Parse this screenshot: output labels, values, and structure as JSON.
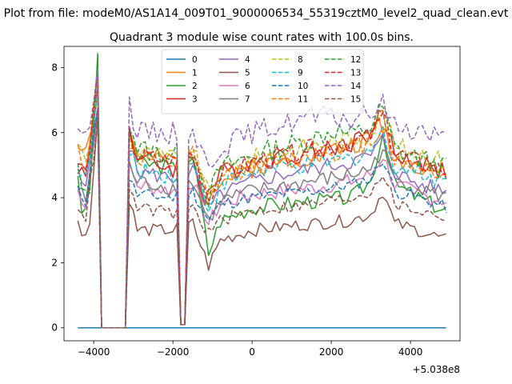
{
  "chart_data": {
    "type": "line",
    "suptitle": "Plot from file: modeM0/AS1A14_009T01_9000006534_55319cztM0_level2_quad_clean.evt",
    "title": "Quadrant 3 module wise count rates with 100.0s bins.",
    "xlabel": "",
    "ylabel": "",
    "offset_text": "+5.038e8",
    "xlim": [
      -4750,
      5250
    ],
    "ylim": [
      -0.4,
      8.65
    ],
    "x_ticks": [
      -4000,
      -2000,
      0,
      2000,
      4000
    ],
    "x_tick_labels": [
      "−4000",
      "−2000",
      "0",
      "2000",
      "4000"
    ],
    "y_ticks": [
      0,
      2,
      4,
      6,
      8
    ],
    "y_tick_labels": [
      "0",
      "2",
      "4",
      "6",
      "8"
    ],
    "legend_position": "upper center",
    "legend_columns": 4,
    "x": {
      "start": -4400,
      "end": 4900,
      "step": 100
    },
    "gaps": [
      {
        "from": -3800,
        "to": -3200,
        "value": 0
      },
      {
        "from": -1800,
        "to": -1700,
        "value": 0.1
      }
    ],
    "series": [
      {
        "name": "0",
        "color": "#1f77b4",
        "dash": "solid",
        "anchors": [
          [
            -4400,
            0
          ],
          [
            4900,
            0
          ]
        ],
        "noise": 0
      },
      {
        "name": "1",
        "color": "#ff7f0e",
        "dash": "solid",
        "anchors": [
          [
            -4400,
            5.6
          ],
          [
            -4100,
            5.8
          ],
          [
            -3900,
            7.2
          ],
          [
            -3100,
            6.0
          ],
          [
            -2900,
            5.3
          ],
          [
            -2000,
            5.1
          ],
          [
            -1500,
            5.4
          ],
          [
            -1200,
            3.8
          ],
          [
            -1000,
            4.4
          ],
          [
            0,
            4.9
          ],
          [
            1500,
            5.3
          ],
          [
            2500,
            5.6
          ],
          [
            3000,
            5.8
          ],
          [
            3200,
            6.5
          ],
          [
            3600,
            5.2
          ],
          [
            4200,
            5.0
          ],
          [
            4900,
            4.7
          ]
        ],
        "noise": 0.3
      },
      {
        "name": "2",
        "color": "#2ca02c",
        "dash": "solid",
        "anchors": [
          [
            -4400,
            4.8
          ],
          [
            -4300,
            3.3
          ],
          [
            -4100,
            4.2
          ],
          [
            -3900,
            8.2
          ],
          [
            -3100,
            6.1
          ],
          [
            -2900,
            5.1
          ],
          [
            -2000,
            4.9
          ],
          [
            -1500,
            5.3
          ],
          [
            -1100,
            2.3
          ],
          [
            -800,
            3.3
          ],
          [
            0,
            3.7
          ],
          [
            1500,
            3.9
          ],
          [
            2500,
            4.0
          ],
          [
            3000,
            4.5
          ],
          [
            3300,
            6.0
          ],
          [
            3600,
            4.4
          ],
          [
            4200,
            4.0
          ],
          [
            4900,
            3.6
          ]
        ],
        "noise": 0.25
      },
      {
        "name": "3",
        "color": "#d62728",
        "dash": "solid",
        "anchors": [
          [
            -4400,
            5.0
          ],
          [
            -4200,
            4.6
          ],
          [
            -3900,
            7.4
          ],
          [
            -3100,
            6.3
          ],
          [
            -2900,
            5.2
          ],
          [
            -2000,
            4.9
          ],
          [
            -1500,
            5.2
          ],
          [
            -1200,
            4.0
          ],
          [
            -800,
            4.7
          ],
          [
            0,
            5.1
          ],
          [
            1500,
            5.4
          ],
          [
            2500,
            5.7
          ],
          [
            3000,
            6.0
          ],
          [
            3300,
            6.6
          ],
          [
            3600,
            5.3
          ],
          [
            4200,
            5.1
          ],
          [
            4900,
            4.8
          ]
        ],
        "noise": 0.3
      },
      {
        "name": "4",
        "color": "#9467bd",
        "dash": "solid",
        "anchors": [
          [
            -4400,
            4.7
          ],
          [
            -4200,
            4.2
          ],
          [
            -3900,
            7.0
          ],
          [
            -3100,
            5.6
          ],
          [
            -2900,
            4.8
          ],
          [
            -2000,
            4.6
          ],
          [
            -1500,
            4.9
          ],
          [
            -1100,
            3.6
          ],
          [
            -800,
            4.1
          ],
          [
            0,
            4.5
          ],
          [
            1500,
            4.9
          ],
          [
            2500,
            5.1
          ],
          [
            3000,
            5.3
          ],
          [
            3300,
            5.8
          ],
          [
            3600,
            4.8
          ],
          [
            4200,
            4.4
          ],
          [
            4900,
            4.2
          ]
        ],
        "noise": 0.25
      },
      {
        "name": "5",
        "color": "#8c564b",
        "dash": "solid",
        "anchors": [
          [
            -4400,
            3.2
          ],
          [
            -4300,
            2.9
          ],
          [
            -4100,
            3.2
          ],
          [
            -3900,
            6.5
          ],
          [
            -3100,
            4.0
          ],
          [
            -2900,
            3.0
          ],
          [
            -2000,
            3.0
          ],
          [
            -1500,
            3.2
          ],
          [
            -1100,
            1.9
          ],
          [
            -800,
            2.7
          ],
          [
            0,
            3.0
          ],
          [
            1500,
            3.2
          ],
          [
            2500,
            3.3
          ],
          [
            3000,
            3.5
          ],
          [
            3300,
            4.2
          ],
          [
            3600,
            3.2
          ],
          [
            4200,
            3.0
          ],
          [
            4900,
            2.7
          ]
        ],
        "noise": 0.2
      },
      {
        "name": "6",
        "color": "#e377c2",
        "dash": "solid",
        "anchors": [
          [
            -4400,
            4.2
          ],
          [
            -4200,
            3.8
          ],
          [
            -3900,
            6.5
          ],
          [
            -3100,
            4.9
          ],
          [
            -2900,
            4.4
          ],
          [
            -2000,
            4.2
          ],
          [
            -1500,
            4.5
          ],
          [
            -1100,
            3.2
          ],
          [
            -800,
            3.8
          ],
          [
            0,
            4.1
          ],
          [
            1500,
            4.3
          ],
          [
            2500,
            4.5
          ],
          [
            3000,
            4.7
          ],
          [
            3300,
            5.3
          ],
          [
            3600,
            4.4
          ],
          [
            4200,
            4.1
          ],
          [
            4900,
            3.9
          ]
        ],
        "noise": 0.25
      },
      {
        "name": "7",
        "color": "#7f7f7f",
        "dash": "solid",
        "anchors": [
          [
            -4400,
            4.3
          ],
          [
            -4200,
            3.9
          ],
          [
            -3900,
            6.6
          ],
          [
            -3100,
            5.0
          ],
          [
            -2900,
            4.5
          ],
          [
            -2000,
            4.3
          ],
          [
            -1500,
            4.5
          ],
          [
            -1100,
            3.3
          ],
          [
            -800,
            3.9
          ],
          [
            0,
            4.2
          ],
          [
            1500,
            4.5
          ],
          [
            2500,
            4.7
          ],
          [
            3000,
            4.9
          ],
          [
            3300,
            5.5
          ],
          [
            3600,
            4.6
          ],
          [
            4200,
            4.3
          ],
          [
            4900,
            4.0
          ]
        ],
        "noise": 0.25
      },
      {
        "name": "8",
        "color": "#bcbd22",
        "dash": "dashed",
        "anchors": [
          [
            -4400,
            5.8
          ],
          [
            -4200,
            5.0
          ],
          [
            -3900,
            7.4
          ],
          [
            -3100,
            5.8
          ],
          [
            -2900,
            5.4
          ],
          [
            -2000,
            5.2
          ],
          [
            -1500,
            5.5
          ],
          [
            -1100,
            4.1
          ],
          [
            -800,
            4.8
          ],
          [
            0,
            5.2
          ],
          [
            1500,
            5.6
          ],
          [
            2500,
            5.8
          ],
          [
            3000,
            6.0
          ],
          [
            3300,
            6.6
          ],
          [
            3600,
            5.6
          ],
          [
            4200,
            5.4
          ],
          [
            4900,
            5.1
          ]
        ],
        "noise": 0.3
      },
      {
        "name": "9",
        "color": "#17becf",
        "dash": "dashed",
        "anchors": [
          [
            -4400,
            4.9
          ],
          [
            -4200,
            4.5
          ],
          [
            -3900,
            7.1
          ],
          [
            -3100,
            5.3
          ],
          [
            -2900,
            4.9
          ],
          [
            -2000,
            4.7
          ],
          [
            -1500,
            5.0
          ],
          [
            -1100,
            3.7
          ],
          [
            -800,
            4.4
          ],
          [
            0,
            4.8
          ],
          [
            1500,
            5.0
          ],
          [
            2500,
            5.2
          ],
          [
            3000,
            5.5
          ],
          [
            3300,
            6.0
          ],
          [
            3600,
            5.0
          ],
          [
            4200,
            4.8
          ],
          [
            4900,
            4.5
          ]
        ],
        "noise": 0.3
      },
      {
        "name": "10",
        "color": "#1f77b4",
        "dash": "dashed",
        "anchors": [
          [
            -4400,
            4.2
          ],
          [
            -4200,
            3.9
          ],
          [
            -3900,
            6.8
          ],
          [
            -3100,
            4.6
          ],
          [
            -2900,
            4.1
          ],
          [
            -2000,
            4.0
          ],
          [
            -1500,
            4.2
          ],
          [
            -1100,
            3.3
          ],
          [
            -800,
            3.8
          ],
          [
            0,
            4.0
          ],
          [
            1500,
            4.2
          ],
          [
            2500,
            4.4
          ],
          [
            3000,
            4.6
          ],
          [
            3300,
            5.2
          ],
          [
            3600,
            4.2
          ],
          [
            4200,
            4.0
          ],
          [
            4900,
            3.7
          ]
        ],
        "noise": 0.2
      },
      {
        "name": "11",
        "color": "#ff7f0e",
        "dash": "dashed",
        "anchors": [
          [
            -4400,
            5.5
          ],
          [
            -4200,
            5.0
          ],
          [
            -3900,
            7.5
          ],
          [
            -3100,
            5.7
          ],
          [
            -2900,
            5.2
          ],
          [
            -2000,
            5.0
          ],
          [
            -1500,
            5.3
          ],
          [
            -1100,
            3.9
          ],
          [
            -800,
            4.6
          ],
          [
            0,
            5.0
          ],
          [
            1500,
            5.3
          ],
          [
            2500,
            5.5
          ],
          [
            3000,
            5.7
          ],
          [
            3300,
            6.3
          ],
          [
            3600,
            5.2
          ],
          [
            4200,
            5.0
          ],
          [
            4900,
            4.7
          ]
        ],
        "noise": 0.3
      },
      {
        "name": "12",
        "color": "#2ca02c",
        "dash": "dashed",
        "anchors": [
          [
            -4400,
            5.0
          ],
          [
            -4300,
            4.0
          ],
          [
            -4100,
            4.4
          ],
          [
            -3900,
            8.2
          ],
          [
            -3100,
            6.4
          ],
          [
            -2900,
            5.5
          ],
          [
            -2000,
            5.3
          ],
          [
            -1500,
            5.5
          ],
          [
            -1100,
            4.0
          ],
          [
            -800,
            4.9
          ],
          [
            0,
            5.3
          ],
          [
            1500,
            5.8
          ],
          [
            2100,
            6.1
          ],
          [
            2500,
            5.9
          ],
          [
            3000,
            6.2
          ],
          [
            3300,
            6.8
          ],
          [
            3600,
            5.5
          ],
          [
            4200,
            5.2
          ],
          [
            4900,
            4.9
          ]
        ],
        "noise": 0.35
      },
      {
        "name": "13",
        "color": "#d62728",
        "dash": "dashed",
        "anchors": [
          [
            -4400,
            5.1
          ],
          [
            -4200,
            4.7
          ],
          [
            -3900,
            7.6
          ],
          [
            -3100,
            5.9
          ],
          [
            -2900,
            5.3
          ],
          [
            -2000,
            5.1
          ],
          [
            -1500,
            5.4
          ],
          [
            -1100,
            4.0
          ],
          [
            -800,
            4.7
          ],
          [
            0,
            5.1
          ],
          [
            1500,
            5.5
          ],
          [
            2500,
            5.7
          ],
          [
            3000,
            5.9
          ],
          [
            3300,
            6.5
          ],
          [
            3600,
            5.4
          ],
          [
            4200,
            5.1
          ],
          [
            4900,
            4.8
          ]
        ],
        "noise": 0.3
      },
      {
        "name": "14",
        "color": "#9467bd",
        "dash": "dashed",
        "anchors": [
          [
            -4400,
            6.3
          ],
          [
            -4200,
            5.7
          ],
          [
            -3900,
            8.1
          ],
          [
            -3100,
            6.9
          ],
          [
            -2900,
            6.0
          ],
          [
            -2000,
            6.0
          ],
          [
            -1500,
            6.1
          ],
          [
            -1100,
            4.9
          ],
          [
            -800,
            5.6
          ],
          [
            0,
            6.0
          ],
          [
            1500,
            6.5
          ],
          [
            2500,
            6.4
          ],
          [
            3000,
            6.6
          ],
          [
            3300,
            6.9
          ],
          [
            3600,
            6.2
          ],
          [
            4200,
            6.1
          ],
          [
            4900,
            5.8
          ]
        ],
        "noise": 0.35
      },
      {
        "name": "15",
        "color": "#8c564b",
        "dash": "dashed",
        "anchors": [
          [
            -4400,
            3.8
          ],
          [
            -4200,
            3.4
          ],
          [
            -3900,
            6.3
          ],
          [
            -3100,
            4.2
          ],
          [
            -2900,
            3.7
          ],
          [
            -2000,
            3.5
          ],
          [
            -1500,
            3.7
          ],
          [
            -1100,
            2.9
          ],
          [
            -800,
            3.3
          ],
          [
            0,
            3.6
          ],
          [
            1500,
            3.8
          ],
          [
            2500,
            4.0
          ],
          [
            3000,
            4.2
          ],
          [
            3300,
            4.8
          ],
          [
            3600,
            3.8
          ],
          [
            4200,
            3.6
          ],
          [
            4900,
            3.4
          ]
        ],
        "noise": 0.2
      }
    ]
  }
}
